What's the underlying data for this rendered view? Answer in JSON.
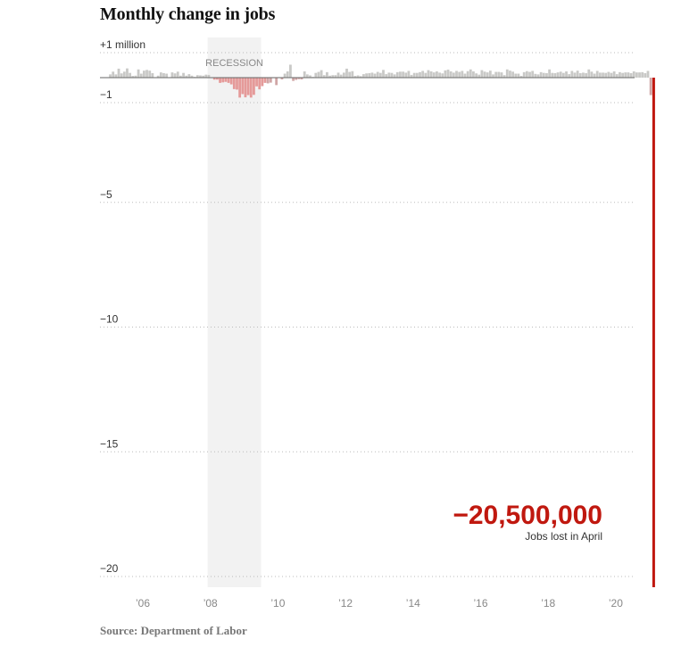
{
  "title": "Monthly change in jobs",
  "source": "Source: Department of Labor",
  "colors": {
    "positive_bar": "#c9c9c7",
    "recession_negative_bar": "#e59a99",
    "other_negative_bar": "#d0a6a6",
    "highlight": "#c0180f",
    "recession_band": "#f2f2f2",
    "grid": "#bbbbbb",
    "zero_line": "#666666"
  },
  "chart_data": {
    "type": "bar",
    "unit": "millions of jobs",
    "ylim": [
      -20.5,
      1.0
    ],
    "xlim": [
      2004.95,
      2020.4
    ],
    "y_ticks": [
      {
        "value": 1,
        "label": "+1 million"
      },
      {
        "value": -1,
        "label": "−1"
      },
      {
        "value": -5,
        "label": "−5"
      },
      {
        "value": -10,
        "label": "−10"
      },
      {
        "value": -15,
        "label": "−15"
      },
      {
        "value": -20,
        "label": "−20"
      }
    ],
    "x_ticks": [
      {
        "value": 2006,
        "label": "’06"
      },
      {
        "value": 2008,
        "label": "’08"
      },
      {
        "value": 2010,
        "label": "’10"
      },
      {
        "value": 2012,
        "label": "’12"
      },
      {
        "value": 2014,
        "label": "’14"
      },
      {
        "value": 2016,
        "label": "’16"
      },
      {
        "value": 2018,
        "label": "’18"
      },
      {
        "value": 2020,
        "label": "’20"
      }
    ],
    "recession": {
      "start": 2007.92,
      "end": 2009.5,
      "label": "RECESSION"
    },
    "annotation": {
      "value": "−20,500,000",
      "text": "Jobs lost in April"
    },
    "start_year": 2005,
    "start_month": 1,
    "values": [
      0.13,
      0.24,
      0.13,
      0.36,
      0.17,
      0.24,
      0.37,
      0.19,
      0.07,
      0.08,
      0.33,
      0.16,
      0.28,
      0.31,
      0.28,
      0.18,
      0.01,
      0.08,
      0.21,
      0.18,
      0.16,
      0.01,
      0.21,
      0.17,
      0.24,
      0.08,
      0.19,
      0.08,
      0.14,
      0.08,
      0.03,
      0.1,
      0.09,
      0.08,
      0.12,
      0.11,
      0.01,
      -0.08,
      -0.08,
      -0.21,
      -0.19,
      -0.17,
      -0.21,
      -0.27,
      -0.46,
      -0.48,
      -0.8,
      -0.66,
      -0.79,
      -0.7,
      -0.8,
      -0.69,
      -0.35,
      -0.47,
      -0.34,
      -0.21,
      -0.23,
      -0.2,
      -0.01,
      -0.3,
      0.02,
      -0.07,
      0.16,
      0.25,
      0.52,
      -0.13,
      -0.09,
      -0.06,
      -0.07,
      0.25,
      0.13,
      0.09,
      0.03,
      0.19,
      0.23,
      0.3,
      0.1,
      0.22,
      0.08,
      0.1,
      0.1,
      0.2,
      0.12,
      0.2,
      0.36,
      0.23,
      0.26,
      0.07,
      0.09,
      0.06,
      0.14,
      0.17,
      0.18,
      0.2,
      0.16,
      0.23,
      0.19,
      0.31,
      0.14,
      0.2,
      0.19,
      0.13,
      0.22,
      0.24,
      0.24,
      0.2,
      0.27,
      0.11,
      0.19,
      0.19,
      0.22,
      0.27,
      0.19,
      0.3,
      0.25,
      0.21,
      0.25,
      0.2,
      0.17,
      0.29,
      0.32,
      0.25,
      0.2,
      0.27,
      0.23,
      0.27,
      0.16,
      0.26,
      0.33,
      0.25,
      0.17,
      0.12,
      0.3,
      0.24,
      0.21,
      0.28,
      0.13,
      0.23,
      0.23,
      0.21,
      0.1,
      0.33,
      0.28,
      0.24,
      0.16,
      0.16,
      0.07,
      0.22,
      0.26,
      0.23,
      0.27,
      0.15,
      0.13,
      0.22,
      0.19,
      0.18,
      0.33,
      0.19,
      0.18,
      0.21,
      0.24,
      0.19,
      0.25,
      0.14,
      0.27,
      0.2,
      0.28,
      0.18,
      0.2,
      0.18,
      0.33,
      0.24,
      0.16,
      0.27,
      0.2,
      0.2,
      0.19,
      0.23,
      0.19,
      0.25,
      0.14,
      0.22,
      0.19,
      0.21,
      0.21,
      0.18,
      0.25,
      0.21,
      0.21,
      0.22,
      0.18,
      0.27,
      -0.7,
      -20.5
    ]
  }
}
